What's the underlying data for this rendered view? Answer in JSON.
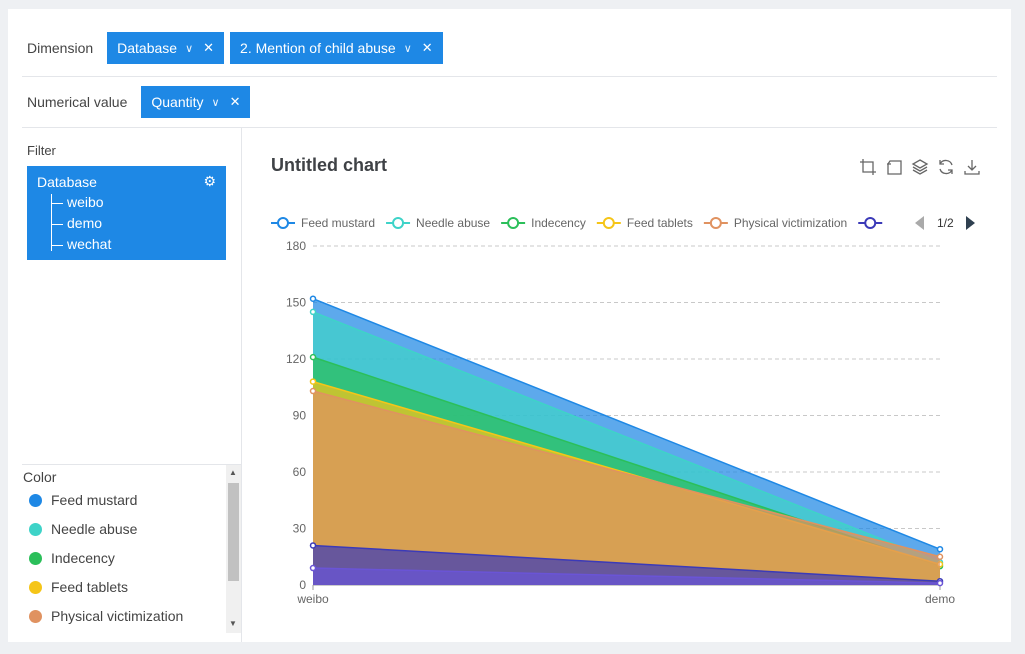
{
  "dimension": {
    "label": "Dimension",
    "tags": [
      {
        "label": "Database"
      },
      {
        "label": "2. Mention of child abuse"
      }
    ]
  },
  "numerical": {
    "label": "Numerical value",
    "tags": [
      {
        "label": "Quantity"
      }
    ]
  },
  "filter": {
    "title": "Filter",
    "root": "Database",
    "children": [
      "weibo",
      "demo",
      "wechat"
    ]
  },
  "color_panel": {
    "title": "Color",
    "items": [
      {
        "label": "Feed mustard",
        "color": "#1e88e5"
      },
      {
        "label": "Needle abuse",
        "color": "#3ed3c8"
      },
      {
        "label": "Indecency",
        "color": "#2bbf5a"
      },
      {
        "label": "Feed tablets",
        "color": "#f5c518"
      },
      {
        "label": "Physical victimization",
        "color": "#e09260"
      }
    ]
  },
  "chart": {
    "title": "Untitled chart",
    "legend_page": "1/2",
    "tools": [
      "crop-icon",
      "undo-icon",
      "stack-icon",
      "refresh-icon",
      "download-icon"
    ]
  },
  "chart_data": {
    "type": "area",
    "stacked": false,
    "categories": [
      "weibo",
      "demo"
    ],
    "ylim": [
      0,
      180
    ],
    "yticks": [
      0,
      30,
      60,
      90,
      120,
      150,
      180
    ],
    "grid": true,
    "legend_position": "top",
    "series": [
      {
        "name": "Feed mustard",
        "color": "#1e88e5",
        "values": [
          152,
          19
        ]
      },
      {
        "name": "Needle abuse",
        "color": "#3ed3c8",
        "values": [
          145,
          12
        ]
      },
      {
        "name": "Indecency",
        "color": "#2bbf5a",
        "values": [
          121,
          10
        ]
      },
      {
        "name": "Feed tablets",
        "color": "#f5c518",
        "values": [
          108,
          11
        ]
      },
      {
        "name": "Physical victimization",
        "color": "#e09260",
        "values": [
          103,
          15
        ]
      },
      {
        "name": "",
        "color": "#3b3ab8",
        "values": [
          21,
          2
        ]
      },
      {
        "name": "",
        "color": "#6a54d6",
        "values": [
          9,
          1
        ]
      }
    ]
  }
}
